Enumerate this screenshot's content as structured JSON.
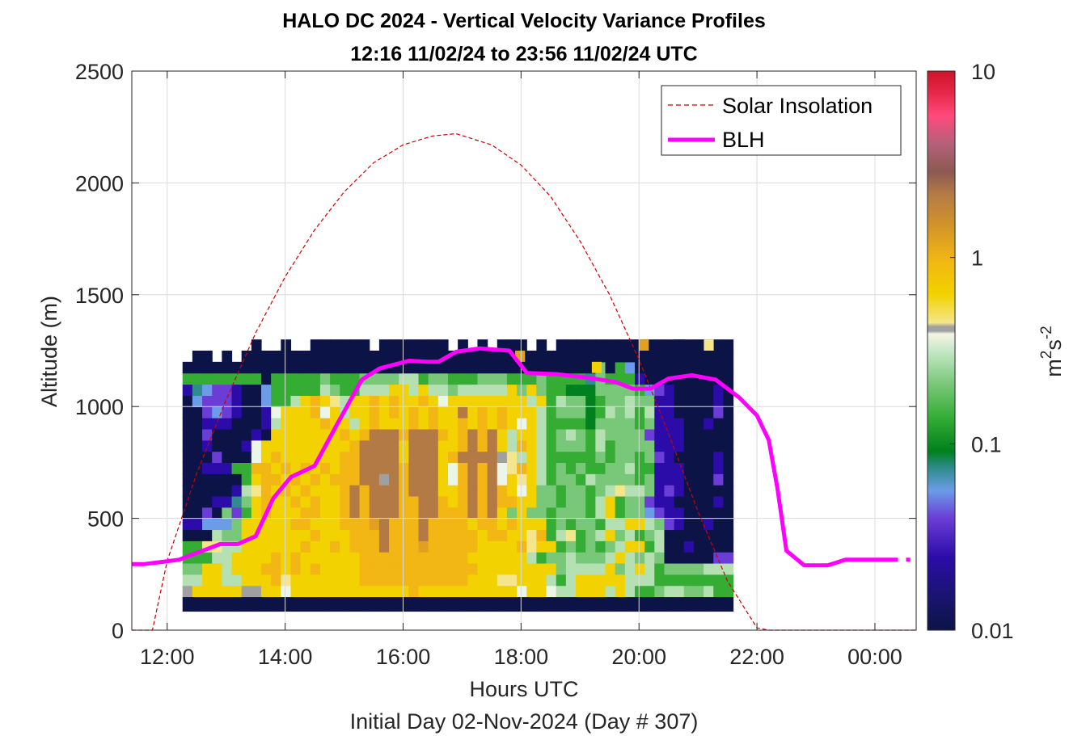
{
  "chart_data": {
    "type": "heatmap",
    "title": "HALO DC 2024 - Vertical Velocity Variance Profiles",
    "subtitle": "12:16 11/02/24 to 23:56 11/02/24  UTC",
    "xlabel": "Hours UTC",
    "footer": "Initial Day 02-Nov-2024 (Day # 307)",
    "ylabel": "Altitude (m)",
    "colorbar_label": "m²s⁻²",
    "colorbar_label_parts": {
      "base": "m",
      "exp1": "2",
      "mid": "s",
      "exp2": "-2"
    },
    "xlim": [
      11.4,
      24.7
    ],
    "ylim": [
      0,
      2500
    ],
    "x_ticks": [
      12,
      14,
      16,
      18,
      20,
      22,
      24
    ],
    "x_tick_labels": [
      "12:00",
      "14:00",
      "16:00",
      "18:00",
      "20:00",
      "22:00",
      "00:00"
    ],
    "y_ticks": [
      0,
      500,
      1000,
      1500,
      2000,
      2500
    ],
    "y_tick_labels": [
      "0",
      "500",
      "1000",
      "1500",
      "2000",
      "2500"
    ],
    "colorbar": {
      "scale": "log",
      "range": [
        0.01,
        10
      ],
      "ticks": [
        0.01,
        0.1,
        1,
        10
      ],
      "tick_labels": [
        "0.01",
        "0.1",
        "1",
        "10"
      ]
    },
    "grid": true,
    "legend": {
      "placement": "top-right",
      "entries": [
        "Solar Insolation",
        "BLH"
      ]
    },
    "series": [
      {
        "name": "Solar Insolation",
        "style": "dashed",
        "color": "#cc0000",
        "x": [
          11.4,
          11.75,
          12.0,
          12.5,
          13.0,
          13.5,
          14.0,
          14.5,
          15.0,
          15.5,
          16.0,
          16.5,
          16.9,
          17.5,
          18.0,
          18.5,
          19.0,
          19.5,
          20.0,
          20.5,
          21.0,
          21.5,
          22.0,
          22.2,
          24.7
        ],
        "y": [
          0,
          0,
          310,
          700,
          1030,
          1330,
          1580,
          1790,
          1960,
          2090,
          2170,
          2210,
          2220,
          2170,
          2080,
          1940,
          1740,
          1500,
          1210,
          880,
          530,
          220,
          10,
          0,
          0
        ]
      },
      {
        "name": "BLH",
        "color": "#ff00ff",
        "x": [
          11.4,
          11.6,
          11.9,
          12.2,
          12.6,
          12.9,
          13.2,
          13.5,
          13.8,
          14.1,
          14.5,
          14.9,
          15.3,
          15.6,
          16.1,
          16.4,
          16.6,
          16.9,
          17.3,
          17.8,
          18.1,
          18.6,
          19.1,
          19.6,
          19.9,
          20.2,
          20.5,
          20.9,
          21.3,
          21.7,
          22.0,
          22.2,
          22.35,
          22.5,
          22.8,
          23.2,
          23.5,
          23.9,
          24.2,
          24.6
        ],
        "y": [
          295,
          295,
          305,
          315,
          355,
          385,
          385,
          420,
          590,
          685,
          735,
          930,
          1120,
          1170,
          1205,
          1200,
          1200,
          1245,
          1260,
          1250,
          1150,
          1145,
          1130,
          1110,
          1080,
          1080,
          1125,
          1140,
          1120,
          1040,
          960,
          850,
          630,
          355,
          290,
          290,
          315,
          315,
          315,
          315
        ]
      }
    ],
    "heatmap": {
      "x_start": 12.26,
      "x_step": 0.1667,
      "y_bottom": 100,
      "y_step": 50,
      "levels": {
        "n": "#0c1447",
        "v": "#2b0ca8",
        "p": "#6a3dd6",
        "b": "#6b9ce8",
        "t": "#2e8c8c",
        "g": "#00801e",
        "G": "#35ad35",
        "m": "#79c779",
        "l": "#b4e0b4",
        "w": "#ebf5e8",
        "y": "#f5e68c",
        "Y": "#f2d200",
        "o": "#f2b714",
        "O": "#e0a022",
        "k": "#c88c3c",
        "K": "#b47a46",
        "s": "#a0a0a0"
      },
      "rows": [
        "nnnnnnnnnnnnnnnnnnnnnnnnnnnnnnnnnnnnnnnnnnnnnnnnnnnnnnnn",
        "sYYYYYssYYwYYYYYYYYYYYYoYYYYYYYYYYwYYwllYYYlYlGGmllmmlGG",
        "llYYllYYYoyYYYYYYYoooooooooooYYYyyYYYlGlYYYYYlllGGGGGGGG",
        "mmYYlYYYooYoYoYYYYooooooooooooYYYYYYYYmllllYmlYlGmmmmlll",
        "GGGllYYYYoYoYYYYYYoooooooooooYYYYYYlGmmlmmmlYlmlmnnnnnpp",
        "GGyyllYYYYYYoYYoYoooKoooOoooooYYYYoyYYGmGmGmlYYGlnnvnnnn",
        "nnnlmmYYYYYYYoYYYoooKoooKoooooYooYYyoGlyGmlYmlGmlnnnnnnn",
        "vvbbbmYYYYYooYYYoooOKoooKooooYooYoYYYGmGmmGllYYlmpvnnvnn",
        "nnpnmpGYoYYYooYYoKoKKKooKKoooKoKYmYmmGmmmGlYGmmbpvvnnnnn",
        "nnnvvtmYoYYoYoYYoKoKKKooKKoYoKoKooYYmmGmmGlYGmmpvvnnnnvn",
        "nnnnnvlyoYoYoYYYoKoKKKoKKKYYoKoKoYwYmmGmmGmlyllmvpvnnnnn",
        "nnnnnnGYooYoYoYoooKKsKoKKKYwoKoKwYyYlGmmGlmmmmGmvvvnnnpn",
        "nnvvvGGooYoYoYoYooKKKKoKKKYwoKoKwyoYlGmGmGGmmlGGvvvnnnvn",
        "nnnpnnnwYoYYYYYYooKKKKYKKKYoKKKKsylYlGGGGGmGmmGmpvnnnnvn",
        "nnvnnnvwYYYYYYYYYoKKKKYKKKYYoKoKYloYlGmmmGlGmmmmvvvnnnnn",
        "nnpnnnnvnYYYYYYYoYoKKKoKKKoYoKoKYlYYlGmlmGlmmmmpvvvnnnnn",
        "nnvvvnnnvlYYYYoYYlYoYYYoYoYYoYoYoYwYlGGGGgmmmmGmvvvnnvnn",
        "nnpbpvnnvwYYYowYlYYoYoYoYoYYKYoYoYYYlGmmmgGlmlGlvvnnnnpn",
        "nbpppvnnbGGlYoYylYYoYoYYoYwYYYYYYYYlYGlmmgGmmlmmvvnnnnvn",
        "vtbppvnnbGGGGGlmGGlllYYlYllmlllllYmYmGGgggmmmmGbpvnnnnvn",
        "GGGGGGGGnGGGGGmGGGmmmmllGmmGGGmmmGGGmGGGGtmGGGvnnnnnnnnn",
        "nnnnnnnnnnnnnnnnnnnnnnnnnnnnnnnnnnnnnnnnnnmnGbnnnnnnnnnn",
        "nnnnnnnnnnnnnnnnnnnnnnnnnnnnnnnnnnnnnnnnnnnnnnnnnnnnnnnn"
      ],
      "tops": [
        1200,
        1250,
        1250,
        1200,
        1250,
        1200,
        1250,
        1300,
        1250,
        1250,
        1300,
        1250,
        1250,
        1300,
        1300,
        1300,
        1300,
        1300,
        1300,
        1250,
        1300,
        1300,
        1300,
        1300,
        1300,
        1300,
        1300,
        1250,
        1300,
        1250,
        1300,
        1250,
        1300,
        1300,
        1300,
        1250,
        1300,
        1250,
        1300,
        1300,
        1300,
        1300,
        1300,
        1300,
        1300,
        1300,
        1300,
        1300,
        1300,
        1300,
        1300,
        1300,
        1300,
        1300,
        1300,
        1300
      ],
      "floating_cells": [
        {
          "x": 20.0,
          "y": 1300,
          "color": "#e0a022"
        },
        {
          "x": 21.1,
          "y": 1300,
          "color": "#f5e68c"
        },
        {
          "x": 20.6,
          "y": 1300,
          "color": "#0c1447"
        },
        {
          "x": 17.9,
          "y": 1250,
          "color": "#e0a022"
        },
        {
          "x": 19.2,
          "y": 1200,
          "color": "#f2d200"
        }
      ]
    }
  }
}
